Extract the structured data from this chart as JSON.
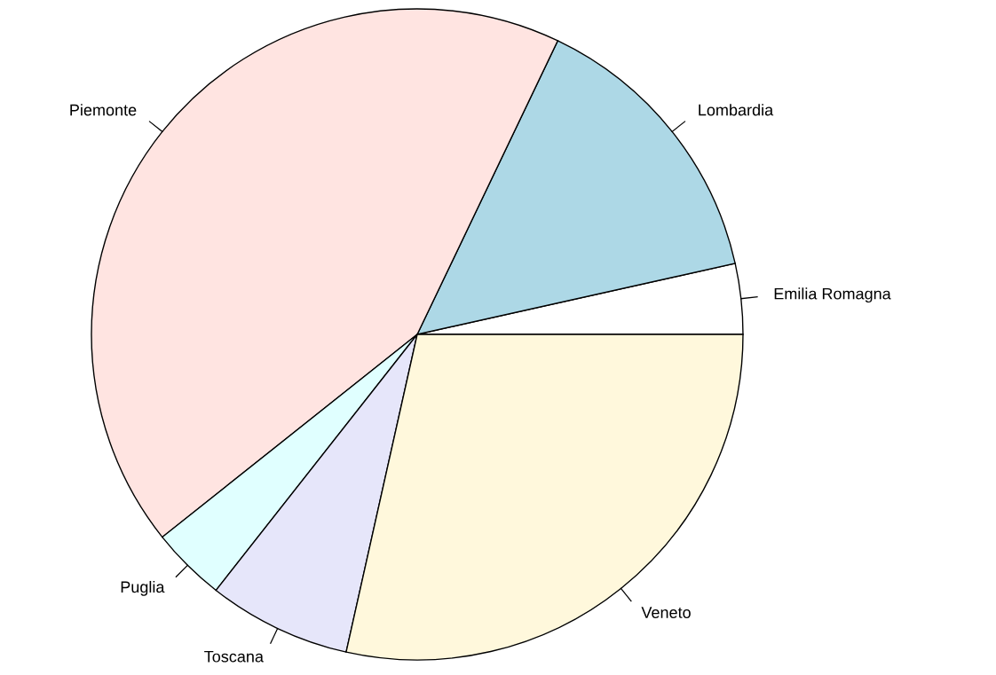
{
  "chart_data": {
    "type": "pie",
    "categories": [
      "Emilia Romagna",
      "Lombardia",
      "Piemonte",
      "Puglia",
      "Toscana",
      "Veneto"
    ],
    "values": [
      3.5,
      14.4,
      42.8,
      3.7,
      7.1,
      28.5
    ],
    "colors": [
      "#ffffff",
      "#add8e6",
      "#ffe4e1",
      "#e0ffff",
      "#e6e6fa",
      "#fff8dc"
    ],
    "legend": false
  }
}
